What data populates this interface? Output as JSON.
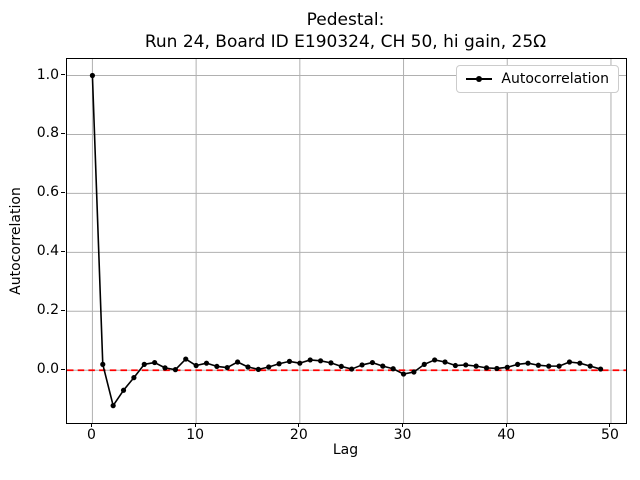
{
  "figure": {
    "title_line1": "Pedestal:",
    "title_line2": "Run 24, Board ID E190324, CH 50, hi gain, 25Ω",
    "xlabel": "Lag",
    "ylabel": "Autocorrelation",
    "legend_label": "Autocorrelation",
    "colors": {
      "line": "#000000",
      "marker": "#000000",
      "zero_line": "#ff0000",
      "grid": "#b0b0b0",
      "spine": "#000000",
      "background": "#ffffff",
      "legend_border": "#cccccc"
    }
  },
  "chart_data": {
    "type": "line",
    "title": "Pedestal:\nRun 24, Board ID E190324, CH 50, hi gain, 25Ω",
    "xlabel": "Lag",
    "ylabel": "Autocorrelation",
    "legend": [
      "Autocorrelation"
    ],
    "legend_position": "upper right",
    "grid": true,
    "xlim": [
      -2.45,
      51.45
    ],
    "ylim": [
      -0.179,
      1.056
    ],
    "xticks": [
      0,
      10,
      20,
      30,
      40,
      50
    ],
    "yticks": [
      0.0,
      0.2,
      0.4,
      0.6,
      0.8,
      1.0
    ],
    "ytick_labels": [
      "0.0",
      "0.2",
      "0.4",
      "0.6",
      "0.8",
      "1.0"
    ],
    "zero_line": {
      "y": 0.0,
      "color": "#ff0000",
      "style": "dashed",
      "linewidth": 1.8
    },
    "series": [
      {
        "name": "Autocorrelation",
        "color": "#000000",
        "marker": "circle",
        "x": [
          0,
          1,
          2,
          3,
          4,
          5,
          6,
          7,
          8,
          9,
          10,
          11,
          12,
          13,
          14,
          15,
          16,
          17,
          18,
          19,
          20,
          21,
          22,
          23,
          24,
          25,
          26,
          27,
          28,
          29,
          30,
          31,
          32,
          33,
          34,
          35,
          36,
          37,
          38,
          39,
          40,
          41,
          42,
          43,
          44,
          45,
          46,
          47,
          48,
          49
        ],
        "y": [
          1.0,
          0.02,
          -0.12,
          -0.068,
          -0.025,
          0.02,
          0.026,
          0.008,
          0.002,
          0.038,
          0.016,
          0.024,
          0.013,
          0.009,
          0.028,
          0.011,
          0.003,
          0.011,
          0.022,
          0.03,
          0.024,
          0.035,
          0.032,
          0.025,
          0.013,
          0.004,
          0.018,
          0.026,
          0.014,
          0.005,
          -0.013,
          -0.006,
          0.02,
          0.035,
          0.028,
          0.016,
          0.018,
          0.014,
          0.008,
          0.006,
          0.01,
          0.02,
          0.024,
          0.017,
          0.014,
          0.014,
          0.028,
          0.024,
          0.014,
          0.004
        ]
      }
    ]
  }
}
